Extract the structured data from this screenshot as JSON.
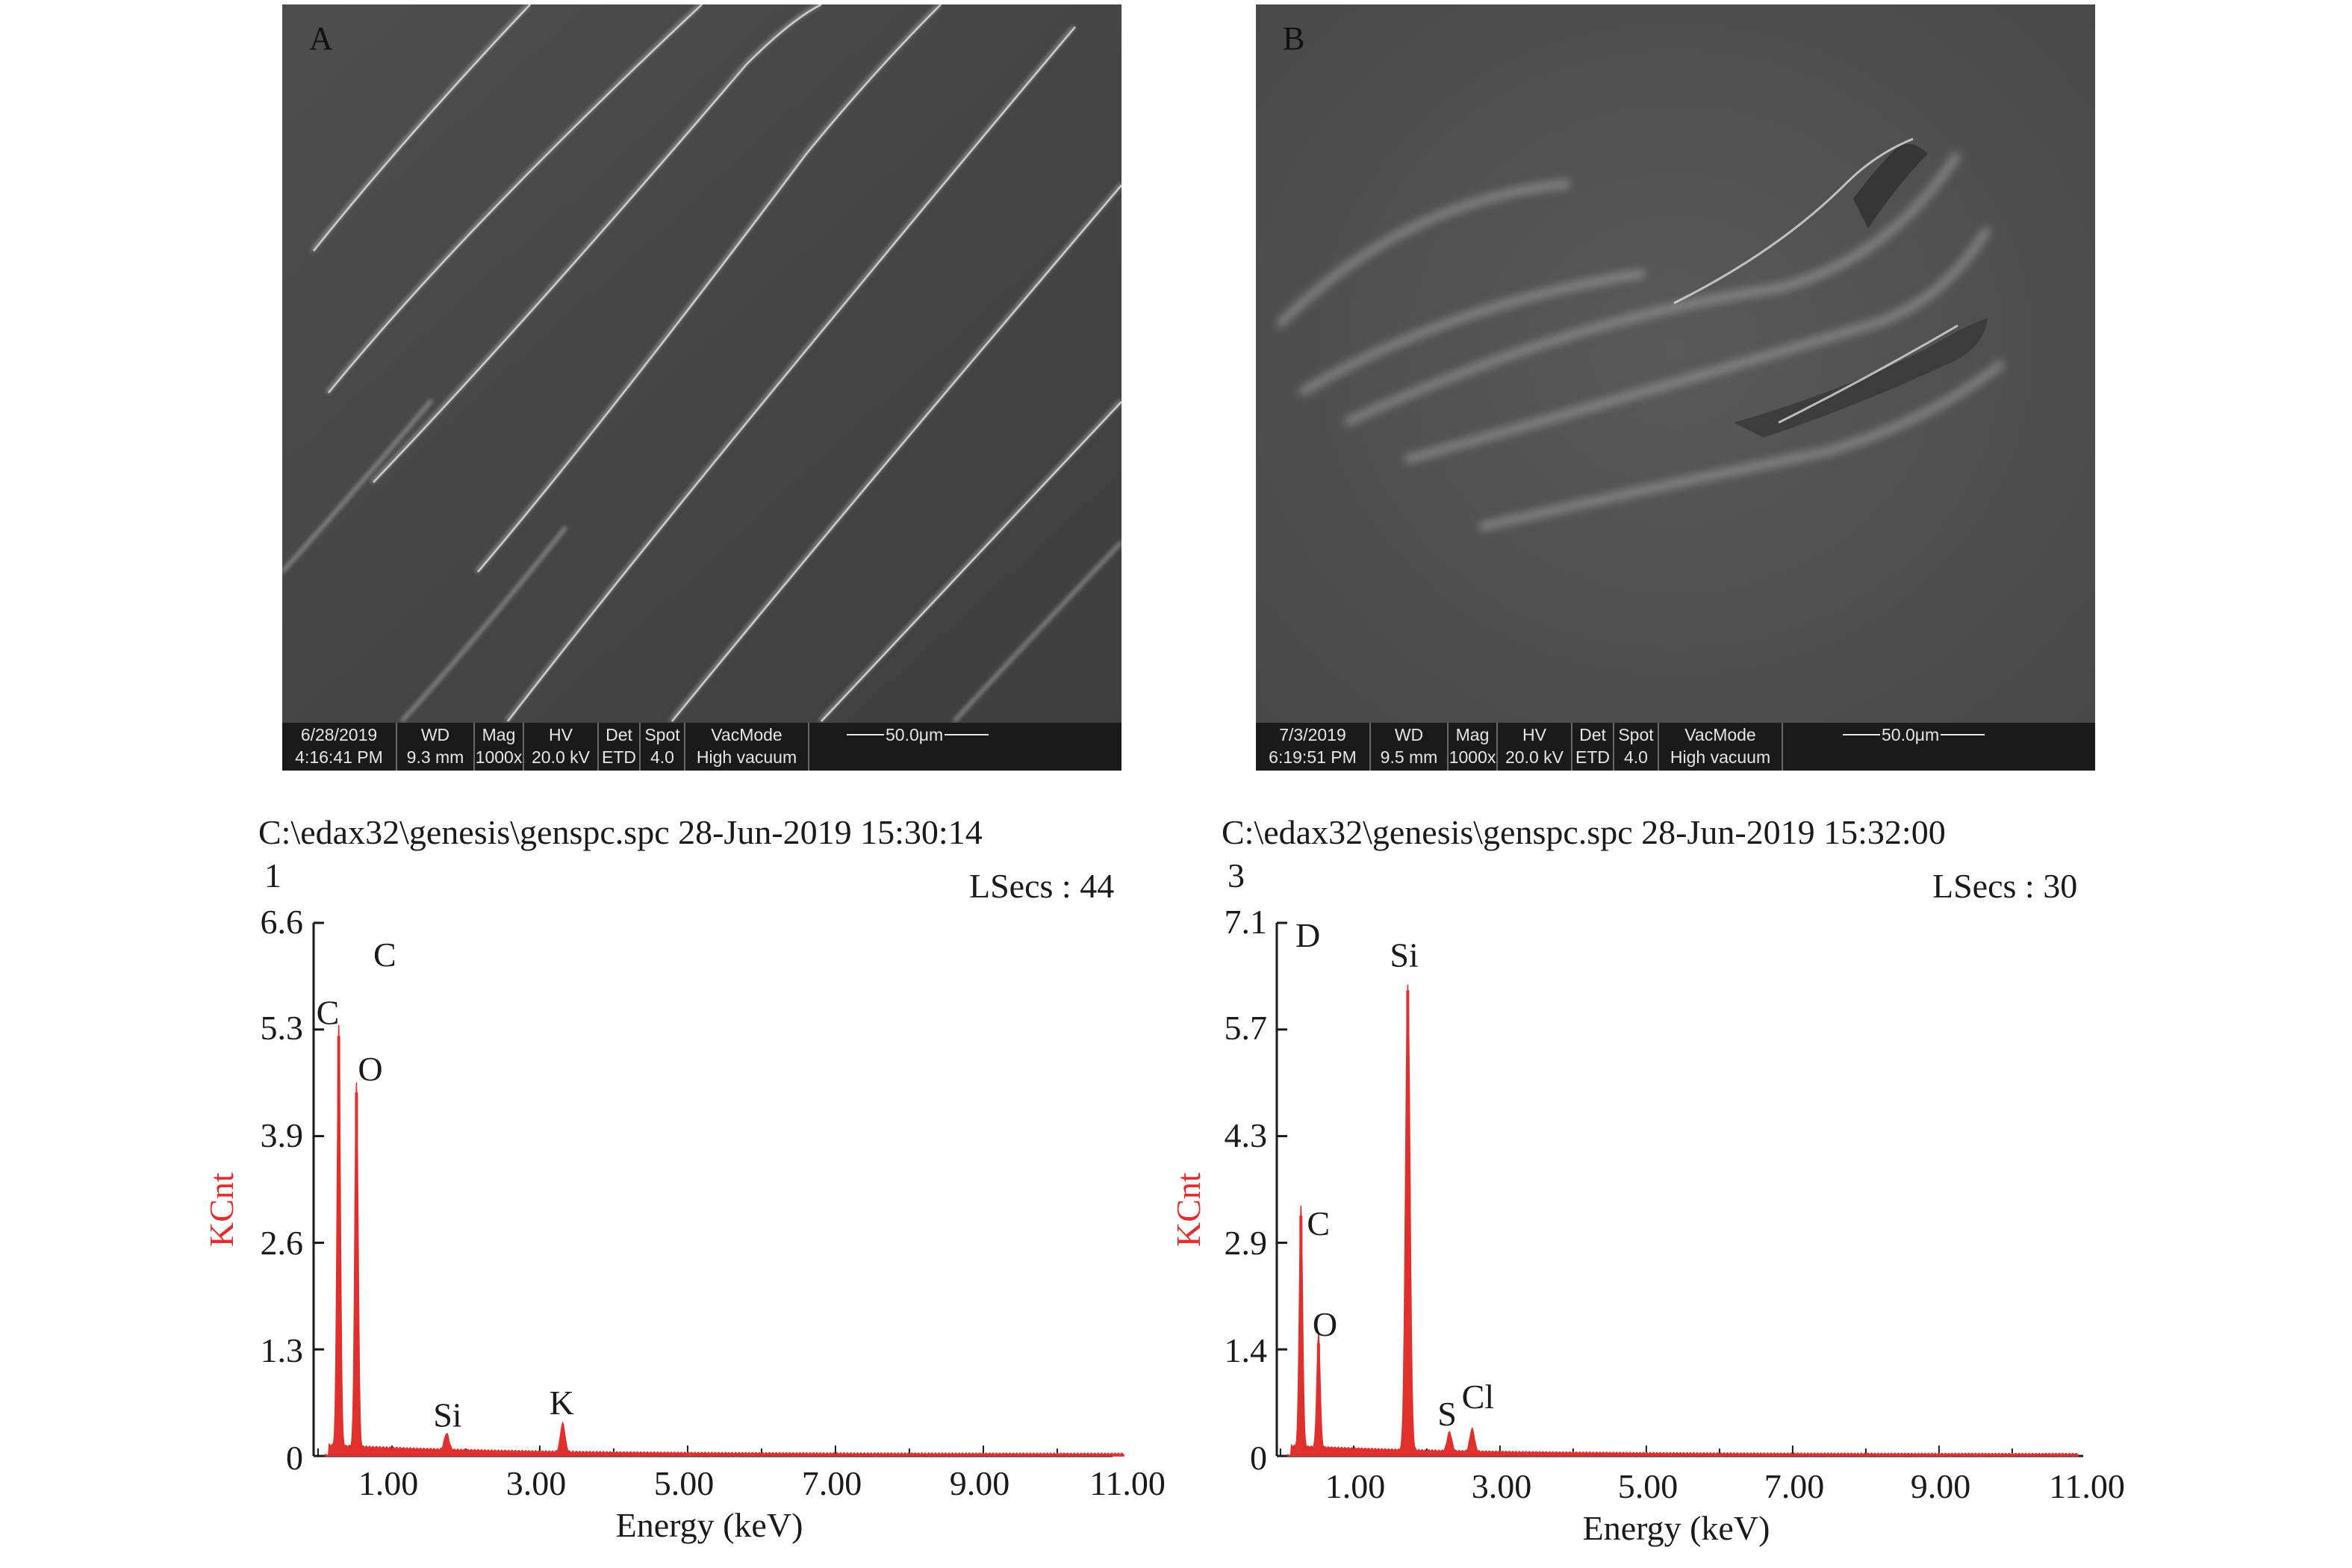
{
  "sem_panels": [
    {
      "label": "A",
      "infobar": {
        "cells": [
          {
            "top": "6/28/2019",
            "bottom": "4:16:41 PM"
          },
          {
            "top": "WD",
            "bottom": "9.3 mm"
          },
          {
            "top": "Mag",
            "bottom": "1000x"
          },
          {
            "top": "HV",
            "bottom": "20.0 kV"
          },
          {
            "top": "Det",
            "bottom": "ETD"
          },
          {
            "top": "Spot",
            "bottom": "4.0"
          },
          {
            "top": "VacMode",
            "bottom": "High vacuum"
          }
        ],
        "scale_label": "50.0μm"
      }
    },
    {
      "label": "B",
      "infobar": {
        "cells": [
          {
            "top": "7/3/2019",
            "bottom": "6:19:51 PM"
          },
          {
            "top": "WD",
            "bottom": "9.5 mm"
          },
          {
            "top": "Mag",
            "bottom": "1000x"
          },
          {
            "top": "HV",
            "bottom": "20.0 kV"
          },
          {
            "top": "Det",
            "bottom": "ETD"
          },
          {
            "top": "Spot",
            "bottom": "4.0"
          },
          {
            "top": "VacMode",
            "bottom": "High vacuum"
          }
        ],
        "scale_label": "50.0μm"
      }
    }
  ],
  "spectra": [
    {
      "header_path": "C:\\edax32\\genesis\\genspc.spc 28-Jun-2019 15:30:14",
      "header_index": "1",
      "header_lsecs": "LSecs : 44",
      "panel_label": "C",
      "ylabel": "KCnt",
      "xlabel": "Energy (keV)",
      "yticks": [
        "0",
        "1.3",
        "2.6",
        "3.9",
        "5.3",
        "6.6"
      ],
      "xticks": [
        "1.00",
        "3.00",
        "5.00",
        "7.00",
        "9.00",
        "11.00"
      ]
    },
    {
      "header_path": "C:\\edax32\\genesis\\genspc.spc 28-Jun-2019 15:32:00",
      "header_index": "3",
      "header_lsecs": "LSecs : 30",
      "panel_label": "D",
      "ylabel": "KCnt",
      "xlabel": "Energy (keV)",
      "yticks": [
        "0",
        "1.4",
        "2.9",
        "4.3",
        "5.7",
        "7.1"
      ],
      "xticks": [
        "1.00",
        "3.00",
        "5.00",
        "7.00",
        "9.00",
        "11.00"
      ]
    }
  ],
  "chart_data": [
    {
      "type": "line",
      "title": "C",
      "xlabel": "Energy (keV)",
      "ylabel": "KCnt",
      "xlim": [
        0,
        11.0
      ],
      "ylim": [
        0,
        6.6
      ],
      "color": "#e0302e",
      "peaks": [
        {
          "element": "C",
          "x": 0.28,
          "y": 5.2
        },
        {
          "element": "O",
          "x": 0.52,
          "y": 4.5
        },
        {
          "element": "Si",
          "x": 1.74,
          "y": 0.2
        },
        {
          "element": "K",
          "x": 3.31,
          "y": 0.35
        }
      ]
    },
    {
      "type": "line",
      "title": "D",
      "xlabel": "Energy (keV)",
      "ylabel": "KCnt",
      "xlim": [
        0,
        11.0
      ],
      "ylim": [
        0,
        7.1
      ],
      "color": "#e0302e",
      "peaks": [
        {
          "element": "C",
          "x": 0.28,
          "y": 3.2
        },
        {
          "element": "O",
          "x": 0.52,
          "y": 1.5
        },
        {
          "element": "Si",
          "x": 1.74,
          "y": 6.2
        },
        {
          "element": "S",
          "x": 2.31,
          "y": 0.25
        },
        {
          "element": "Cl",
          "x": 2.62,
          "y": 0.3
        }
      ]
    }
  ]
}
